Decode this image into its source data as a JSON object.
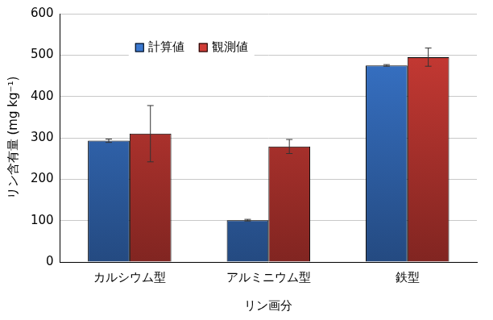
{
  "chart_data": {
    "type": "bar",
    "x_label": "リン画分",
    "y_label": "リン含有量 (mg kg⁻¹)",
    "categories": [
      "カルシウム型",
      "アルミニウム型",
      "鉄型"
    ],
    "series": [
      {
        "name": "計算値",
        "color": "#3a78d0",
        "values": [
          293,
          101,
          475
        ],
        "errors": [
          4,
          2,
          2
        ]
      },
      {
        "name": "観測値",
        "color": "#d03c36",
        "values": [
          310,
          279,
          495
        ],
        "errors": [
          68,
          17,
          22
        ]
      }
    ],
    "ylim": [
      0,
      600
    ],
    "yticks": [
      0,
      100,
      200,
      300,
      400,
      500,
      600
    ],
    "grid": true,
    "legend": "upper left"
  }
}
